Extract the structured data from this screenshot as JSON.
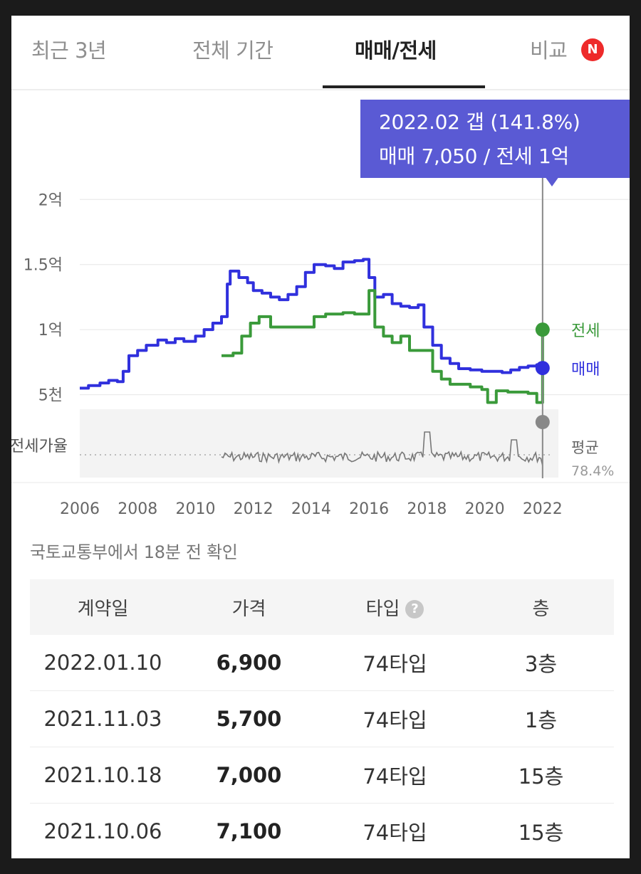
{
  "tabs": [
    {
      "label": "최근 3년",
      "active": false
    },
    {
      "label": "전체 기간",
      "active": false
    },
    {
      "label": "매매/전세",
      "active": true
    },
    {
      "label": "비교",
      "active": false,
      "badge": "N"
    }
  ],
  "tooltip": {
    "line1": "2022.02  갭 (141.8%)",
    "line2": "매매 7,050 / 전세 1억"
  },
  "chart_data": {
    "type": "line",
    "y_ticks": [
      {
        "value": 20000,
        "label": "2억"
      },
      {
        "value": 15000,
        "label": "1.5억"
      },
      {
        "value": 10000,
        "label": "1억"
      },
      {
        "value": 5000,
        "label": "5천"
      }
    ],
    "ylim": [
      3500,
      21000
    ],
    "xlim": [
      2006,
      2022.3
    ],
    "x_ticks": [
      "2006",
      "2008",
      "2010",
      "2012",
      "2014",
      "2016",
      "2018",
      "2020",
      "2022"
    ],
    "series": [
      {
        "name": "매매",
        "color": "#3030dd",
        "points": [
          [
            2006.0,
            5500
          ],
          [
            2006.3,
            5700
          ],
          [
            2006.7,
            5900
          ],
          [
            2007.0,
            6100
          ],
          [
            2007.3,
            6000
          ],
          [
            2007.5,
            6800
          ],
          [
            2007.7,
            8000
          ],
          [
            2008.0,
            8400
          ],
          [
            2008.3,
            8800
          ],
          [
            2008.7,
            9200
          ],
          [
            2009.0,
            9000
          ],
          [
            2009.3,
            9300
          ],
          [
            2009.6,
            9100
          ],
          [
            2010.0,
            9500
          ],
          [
            2010.3,
            10000
          ],
          [
            2010.6,
            10500
          ],
          [
            2010.9,
            11000
          ],
          [
            2011.1,
            13500
          ],
          [
            2011.2,
            14500
          ],
          [
            2011.5,
            14000
          ],
          [
            2011.8,
            13600
          ],
          [
            2012.0,
            13000
          ],
          [
            2012.3,
            12800
          ],
          [
            2012.6,
            12500
          ],
          [
            2012.9,
            12300
          ],
          [
            2013.2,
            12700
          ],
          [
            2013.5,
            13300
          ],
          [
            2013.8,
            14400
          ],
          [
            2014.1,
            15000
          ],
          [
            2014.5,
            14900
          ],
          [
            2014.8,
            14700
          ],
          [
            2015.1,
            15200
          ],
          [
            2015.5,
            15300
          ],
          [
            2015.8,
            15400
          ],
          [
            2016.0,
            14000
          ],
          [
            2016.2,
            12500
          ],
          [
            2016.5,
            12700
          ],
          [
            2016.8,
            12000
          ],
          [
            2017.1,
            11800
          ],
          [
            2017.4,
            11700
          ],
          [
            2017.7,
            11900
          ],
          [
            2017.9,
            10200
          ],
          [
            2018.2,
            8800
          ],
          [
            2018.5,
            7800
          ],
          [
            2018.8,
            7400
          ],
          [
            2019.1,
            7000
          ],
          [
            2019.5,
            6900
          ],
          [
            2019.9,
            6800
          ],
          [
            2020.3,
            6800
          ],
          [
            2020.6,
            6700
          ],
          [
            2020.9,
            6900
          ],
          [
            2021.2,
            7100
          ],
          [
            2021.5,
            7200
          ],
          [
            2021.8,
            7300
          ],
          [
            2022.0,
            7050
          ]
        ]
      },
      {
        "name": "전세",
        "color": "#3a9a3a",
        "points": [
          [
            2010.9,
            8000
          ],
          [
            2011.3,
            8200
          ],
          [
            2011.6,
            9500
          ],
          [
            2011.9,
            10500
          ],
          [
            2012.2,
            11000
          ],
          [
            2012.6,
            10200
          ],
          [
            2013.0,
            10200
          ],
          [
            2013.4,
            10200
          ],
          [
            2013.8,
            10200
          ],
          [
            2014.1,
            11000
          ],
          [
            2014.5,
            11200
          ],
          [
            2014.8,
            11200
          ],
          [
            2015.1,
            11300
          ],
          [
            2015.5,
            11200
          ],
          [
            2015.8,
            11200
          ],
          [
            2016.0,
            13000
          ],
          [
            2016.2,
            10200
          ],
          [
            2016.5,
            9500
          ],
          [
            2016.8,
            9000
          ],
          [
            2017.1,
            9500
          ],
          [
            2017.4,
            8400
          ],
          [
            2017.7,
            8400
          ],
          [
            2017.9,
            8400
          ],
          [
            2018.2,
            6800
          ],
          [
            2018.5,
            6200
          ],
          [
            2018.8,
            5800
          ],
          [
            2019.1,
            5800
          ],
          [
            2019.5,
            5600
          ],
          [
            2019.9,
            5400
          ],
          [
            2020.1,
            4400
          ],
          [
            2020.4,
            5300
          ],
          [
            2020.8,
            5200
          ],
          [
            2021.1,
            5200
          ],
          [
            2021.5,
            5100
          ],
          [
            2021.8,
            4400
          ],
          [
            2022.0,
            10000
          ]
        ]
      }
    ],
    "series_labels": [
      {
        "label": "전세",
        "color": "#3a9a3a"
      },
      {
        "label": "매매",
        "color": "#3030dd"
      }
    ],
    "ratio_panel": {
      "label": "전세가율",
      "average_label": "평균",
      "average_value": "78.4%"
    }
  },
  "source_note": "국토교통부에서 18분 전 확인",
  "table": {
    "headers": [
      "계약일",
      "가격",
      "타입",
      "층"
    ],
    "help_icon": "?",
    "rows": [
      [
        "2022.01.10",
        "6,900",
        "74타입",
        "3층"
      ],
      [
        "2021.11.03",
        "5,700",
        "74타입",
        "1층"
      ],
      [
        "2021.10.18",
        "7,000",
        "74타입",
        "15층"
      ],
      [
        "2021.10.06",
        "7,100",
        "74타입",
        "15층"
      ]
    ]
  }
}
